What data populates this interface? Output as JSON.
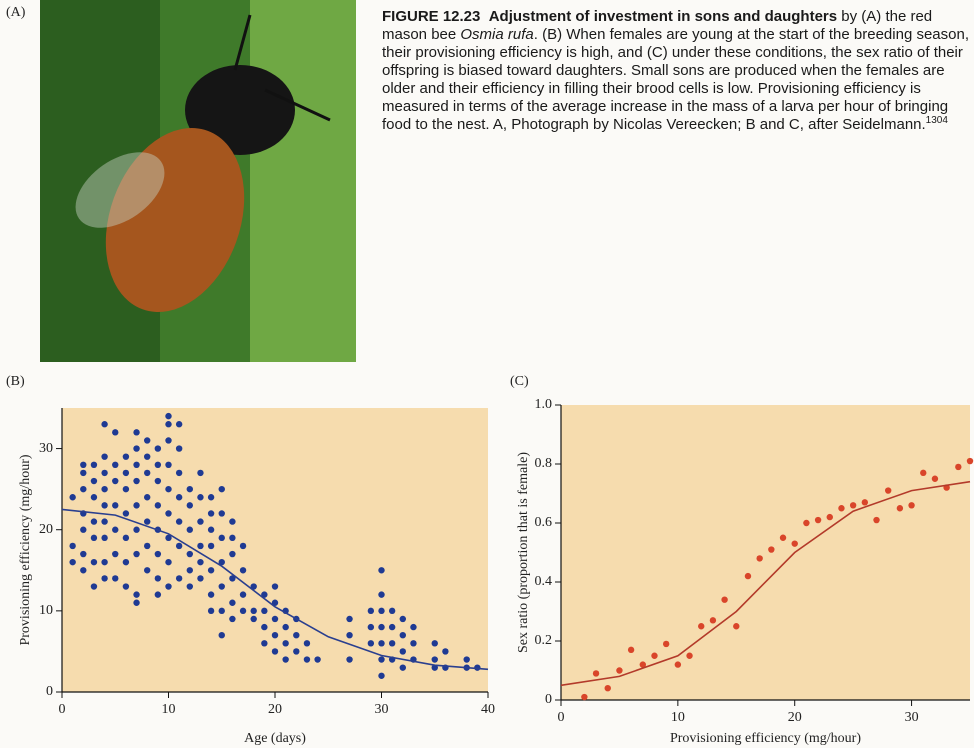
{
  "figure_label_a": "(A)",
  "caption": {
    "figure_number": "FIGURE 12.23",
    "title": "Adjustment of investment in sons and daughters",
    "text_1": "by (A) the red mason bee ",
    "species": "Osmia rufa",
    "text_2": ". (B) When females are young at the start of the breeding season, their provisioning efficiency is high, and (C) under these conditions, the sex ratio of their offspring is biased toward daughters. Small sons are produced when the females are older and their efficiency in filling their brood cells is low. Provisioning efficiency is measured in terms of the average increase in the mass of a larva per hour of bringing food to the nest. A, Photograph by Nicolas Vereecken; B and C, after Seidelmann.",
    "reference": "1304"
  },
  "chart_data": [
    {
      "type": "scatter",
      "panel_label": "(B)",
      "x_label": "Age (days)",
      "y_label": "Provisioning efficiency (mg/hour)",
      "xlim": [
        0,
        40
      ],
      "ylim": [
        0,
        35
      ],
      "xticks": [
        0,
        10,
        20,
        30,
        40
      ],
      "yticks": [
        0,
        10,
        20,
        30
      ],
      "background": "#f6dcae",
      "series": [
        {
          "mode": "markers",
          "color": "#1f3a93",
          "x": [
            1,
            1,
            1,
            2,
            2,
            2,
            2,
            2,
            2,
            2,
            3,
            3,
            3,
            3,
            3,
            3,
            3,
            4,
            4,
            4,
            4,
            4,
            4,
            4,
            4,
            4,
            5,
            5,
            5,
            5,
            5,
            5,
            5,
            6,
            6,
            6,
            6,
            6,
            6,
            6,
            7,
            7,
            7,
            7,
            7,
            7,
            7,
            7,
            7,
            8,
            8,
            8,
            8,
            8,
            8,
            8,
            9,
            9,
            9,
            9,
            9,
            9,
            9,
            9,
            10,
            10,
            10,
            10,
            10,
            10,
            10,
            10,
            10,
            11,
            11,
            11,
            11,
            11,
            11,
            11,
            12,
            12,
            12,
            12,
            12,
            12,
            13,
            13,
            13,
            13,
            13,
            13,
            14,
            14,
            14,
            14,
            14,
            14,
            14,
            15,
            15,
            15,
            15,
            15,
            15,
            15,
            16,
            16,
            16,
            16,
            16,
            16,
            17,
            17,
            17,
            17,
            18,
            18,
            18,
            19,
            19,
            19,
            19,
            20,
            20,
            20,
            20,
            20,
            21,
            21,
            21,
            21,
            22,
            22,
            22,
            23,
            23,
            24,
            27,
            27,
            27,
            29,
            29,
            29,
            30,
            30,
            30,
            30,
            30,
            30,
            30,
            31,
            31,
            31,
            31,
            32,
            32,
            32,
            32,
            33,
            33,
            33,
            35,
            35,
            35,
            36,
            36,
            38,
            38,
            39
          ],
          "values": [
            24,
            18,
            16,
            28,
            27,
            25,
            22,
            20,
            17,
            15,
            28,
            26,
            24,
            21,
            19,
            16,
            13,
            33,
            29,
            27,
            25,
            23,
            21,
            19,
            16,
            14,
            32,
            28,
            26,
            23,
            20,
            17,
            14,
            29,
            27,
            25,
            22,
            19,
            16,
            13,
            32,
            30,
            28,
            26,
            23,
            20,
            17,
            12,
            11,
            31,
            29,
            27,
            24,
            21,
            18,
            15,
            30,
            28,
            26,
            23,
            20,
            17,
            14,
            12,
            34,
            33,
            31,
            28,
            25,
            22,
            19,
            16,
            13,
            33,
            30,
            27,
            24,
            21,
            18,
            14,
            25,
            23,
            20,
            17,
            15,
            13,
            27,
            24,
            21,
            18,
            16,
            14,
            24,
            22,
            20,
            18,
            15,
            12,
            10,
            25,
            22,
            19,
            16,
            13,
            10,
            7,
            21,
            19,
            17,
            14,
            11,
            9,
            18,
            15,
            12,
            10,
            13,
            10,
            9,
            12,
            10,
            8,
            6,
            13,
            11,
            9,
            7,
            5,
            10,
            8,
            6,
            4,
            9,
            7,
            5,
            6,
            4,
            4,
            9,
            7,
            4,
            10,
            8,
            6,
            15,
            12,
            10,
            8,
            6,
            4,
            2,
            10,
            8,
            6,
            4,
            9,
            7,
            5,
            3,
            8,
            6,
            4,
            6,
            4,
            3,
            5,
            3,
            4,
            3,
            3
          ]
        },
        {
          "mode": "line",
          "color": "#2a3f8f",
          "x": [
            0,
            5,
            10,
            15,
            20,
            25,
            30,
            35,
            40
          ],
          "values": [
            22.5,
            21.8,
            19.5,
            15.5,
            10.5,
            6.8,
            4.5,
            3.3,
            2.8
          ]
        }
      ]
    },
    {
      "type": "scatter",
      "panel_label": "(C)",
      "x_label": "Provisioning efficiency (mg/hour)",
      "y_label": "Sex ratio (proportion that is female)",
      "xlim": [
        0,
        35
      ],
      "ylim": [
        0,
        1
      ],
      "xticks": [
        0,
        10,
        20,
        30
      ],
      "yticks": [
        0,
        0.2,
        0.4,
        0.6,
        0.8,
        {
          "value": 1,
          "label": "1.0"
        }
      ],
      "background": "#f6dcae",
      "series": [
        {
          "mode": "markers",
          "color": "#d9452a",
          "x": [
            2,
            3,
            4,
            5,
            6,
            7,
            8,
            9,
            10,
            11,
            12,
            13,
            14,
            15,
            16,
            17,
            18,
            19,
            20,
            21,
            22,
            23,
            24,
            25,
            26,
            27,
            28,
            29,
            30,
            31,
            32,
            33,
            34,
            35
          ],
          "values": [
            0.01,
            0.09,
            0.04,
            0.1,
            0.17,
            0.12,
            0.15,
            0.19,
            0.12,
            0.15,
            0.25,
            0.27,
            0.34,
            0.25,
            0.42,
            0.48,
            0.51,
            0.55,
            0.53,
            0.6,
            0.61,
            0.62,
            0.65,
            0.66,
            0.67,
            0.61,
            0.71,
            0.65,
            0.66,
            0.77,
            0.75,
            0.72,
            0.79,
            0.81
          ]
        },
        {
          "mode": "line",
          "color": "#b33a2a",
          "x": [
            0,
            5,
            10,
            15,
            20,
            25,
            30,
            35
          ],
          "values": [
            0.05,
            0.08,
            0.15,
            0.3,
            0.5,
            0.64,
            0.71,
            0.74
          ]
        }
      ]
    }
  ]
}
